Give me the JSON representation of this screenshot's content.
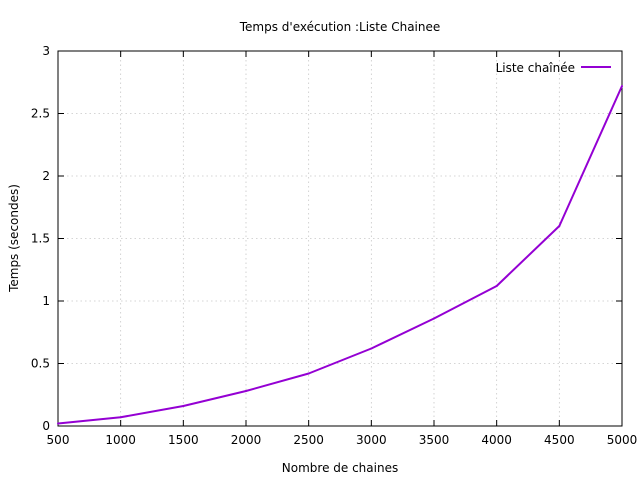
{
  "chart_data": {
    "type": "line",
    "title": "Temps d'exécution :Liste Chainee",
    "xlabel": "Nombre de chaines",
    "ylabel": "Temps (secondes)",
    "xlim": [
      500,
      5000
    ],
    "ylim": [
      0,
      3
    ],
    "xticks": [
      500,
      1000,
      1500,
      2000,
      2500,
      3000,
      3500,
      4000,
      4500,
      5000
    ],
    "yticks": [
      0,
      0.5,
      1,
      1.5,
      2,
      2.5,
      3
    ],
    "xtick_labels": [
      "500",
      "1000",
      "1500",
      "2000",
      "2500",
      "3000",
      "3500",
      "4000",
      "4500",
      "5000"
    ],
    "ytick_labels": [
      "0",
      "0.5",
      "1",
      "1.5",
      "2",
      "2.5",
      "3"
    ],
    "grid": true,
    "legend_position": "top-right",
    "series": [
      {
        "name": "Liste chaînée",
        "color": "#9400d3",
        "x": [
          500,
          1000,
          1500,
          2000,
          2500,
          3000,
          3500,
          4000,
          4500,
          5000
        ],
        "values": [
          0.02,
          0.07,
          0.16,
          0.28,
          0.42,
          0.62,
          0.86,
          1.12,
          1.6,
          2.72
        ]
      }
    ]
  }
}
